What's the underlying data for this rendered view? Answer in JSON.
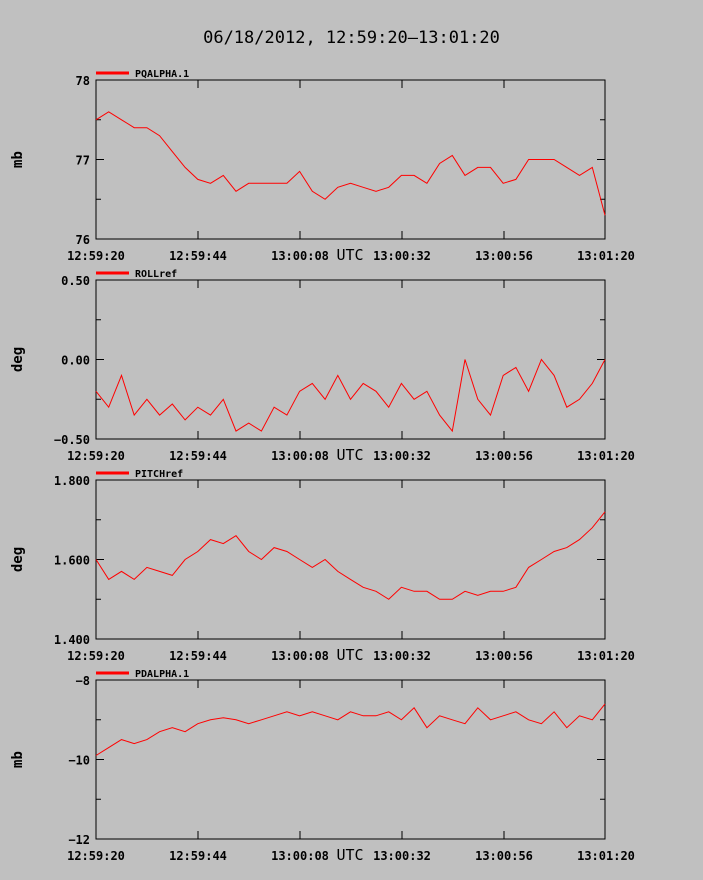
{
  "title": "06/18/2012, 12:59:20–13:01:20",
  "colors": {
    "background": "#c0c0c0",
    "series": "#ff0000",
    "axis": "#000000"
  },
  "x_tick_labels": [
    "12:59:20",
    "12:59:44",
    "13:00:08",
    "13:00:32",
    "13:00:56",
    "13:01:20"
  ],
  "x_unit_label": "UTC",
  "chart_data": [
    {
      "type": "line",
      "legend": "PQALPHA.1",
      "ylabel": "mb",
      "ylim": [
        76,
        78
      ],
      "yticks": [
        "78",
        "77",
        "76"
      ],
      "xlim": [
        0,
        120
      ],
      "series": [
        {
          "name": "PQALPHA.1",
          "x": [
            0,
            3,
            6,
            9,
            12,
            15,
            18,
            21,
            24,
            27,
            30,
            33,
            36,
            39,
            42,
            45,
            48,
            51,
            54,
            57,
            60,
            63,
            66,
            69,
            72,
            75,
            78,
            81,
            84,
            87,
            90,
            93,
            96,
            99,
            102,
            105,
            108,
            111,
            114,
            117,
            120
          ],
          "values": [
            77.5,
            77.6,
            77.5,
            77.4,
            77.4,
            77.3,
            77.1,
            76.9,
            76.75,
            76.7,
            76.8,
            76.6,
            76.7,
            76.7,
            76.7,
            76.7,
            76.85,
            76.6,
            76.5,
            76.65,
            76.7,
            76.65,
            76.6,
            76.65,
            76.8,
            76.8,
            76.7,
            76.95,
            77.05,
            76.8,
            76.9,
            76.9,
            76.7,
            76.75,
            77.0,
            77.0,
            77.0,
            76.9,
            76.8,
            76.9,
            76.3
          ]
        }
      ]
    },
    {
      "type": "line",
      "legend": "ROLLref",
      "ylabel": "deg",
      "ylim": [
        -0.5,
        0.5
      ],
      "yticks": [
        "0.50",
        "0.00",
        "−0.50"
      ],
      "xlim": [
        0,
        120
      ],
      "series": [
        {
          "name": "ROLLref",
          "x": [
            0,
            3,
            6,
            9,
            12,
            15,
            18,
            21,
            24,
            27,
            30,
            33,
            36,
            39,
            42,
            45,
            48,
            51,
            54,
            57,
            60,
            63,
            66,
            69,
            72,
            75,
            78,
            81,
            84,
            87,
            90,
            93,
            96,
            99,
            102,
            105,
            108,
            111,
            114,
            117,
            120
          ],
          "values": [
            -0.2,
            -0.3,
            -0.1,
            -0.35,
            -0.25,
            -0.35,
            -0.28,
            -0.38,
            -0.3,
            -0.35,
            -0.25,
            -0.45,
            -0.4,
            -0.45,
            -0.3,
            -0.35,
            -0.2,
            -0.15,
            -0.25,
            -0.1,
            -0.25,
            -0.15,
            -0.2,
            -0.3,
            -0.15,
            -0.25,
            -0.2,
            -0.35,
            -0.45,
            0.0,
            -0.25,
            -0.35,
            -0.1,
            -0.05,
            -0.2,
            0.0,
            -0.1,
            -0.3,
            -0.25,
            -0.15,
            0.0
          ]
        }
      ]
    },
    {
      "type": "line",
      "legend": "PITCHref",
      "ylabel": "deg",
      "ylim": [
        1.4,
        1.8
      ],
      "yticks": [
        "1.800",
        "1.600",
        "1.400"
      ],
      "xlim": [
        0,
        120
      ],
      "series": [
        {
          "name": "PITCHref",
          "x": [
            0,
            3,
            6,
            9,
            12,
            15,
            18,
            21,
            24,
            27,
            30,
            33,
            36,
            39,
            42,
            45,
            48,
            51,
            54,
            57,
            60,
            63,
            66,
            69,
            72,
            75,
            78,
            81,
            84,
            87,
            90,
            93,
            96,
            99,
            102,
            105,
            108,
            111,
            114,
            117,
            120
          ],
          "values": [
            1.6,
            1.55,
            1.57,
            1.55,
            1.58,
            1.57,
            1.56,
            1.6,
            1.62,
            1.65,
            1.64,
            1.66,
            1.62,
            1.6,
            1.63,
            1.62,
            1.6,
            1.58,
            1.6,
            1.57,
            1.55,
            1.53,
            1.52,
            1.5,
            1.53,
            1.52,
            1.52,
            1.5,
            1.5,
            1.52,
            1.51,
            1.52,
            1.52,
            1.53,
            1.58,
            1.6,
            1.62,
            1.63,
            1.65,
            1.68,
            1.72
          ]
        }
      ]
    },
    {
      "type": "line",
      "legend": "PDALPHA.1",
      "ylabel": "mb",
      "ylim": [
        -12,
        -8
      ],
      "yticks": [
        "−8",
        "−10",
        "−12"
      ],
      "xlim": [
        0,
        120
      ],
      "series": [
        {
          "name": "PDALPHA.1",
          "x": [
            0,
            3,
            6,
            9,
            12,
            15,
            18,
            21,
            24,
            27,
            30,
            33,
            36,
            39,
            42,
            45,
            48,
            51,
            54,
            57,
            60,
            63,
            66,
            69,
            72,
            75,
            78,
            81,
            84,
            87,
            90,
            93,
            96,
            99,
            102,
            105,
            108,
            111,
            114,
            117,
            120
          ],
          "values": [
            -9.9,
            -9.7,
            -9.5,
            -9.6,
            -9.5,
            -9.3,
            -9.2,
            -9.3,
            -9.1,
            -9.0,
            -8.95,
            -9.0,
            -9.1,
            -9.0,
            -8.9,
            -8.8,
            -8.9,
            -8.8,
            -8.9,
            -9.0,
            -8.8,
            -8.9,
            -8.9,
            -8.8,
            -9.0,
            -8.7,
            -9.2,
            -8.9,
            -9.0,
            -9.1,
            -8.7,
            -9.0,
            -8.9,
            -8.8,
            -9.0,
            -9.1,
            -8.8,
            -9.2,
            -8.9,
            -9.0,
            -8.6
          ]
        }
      ]
    }
  ]
}
